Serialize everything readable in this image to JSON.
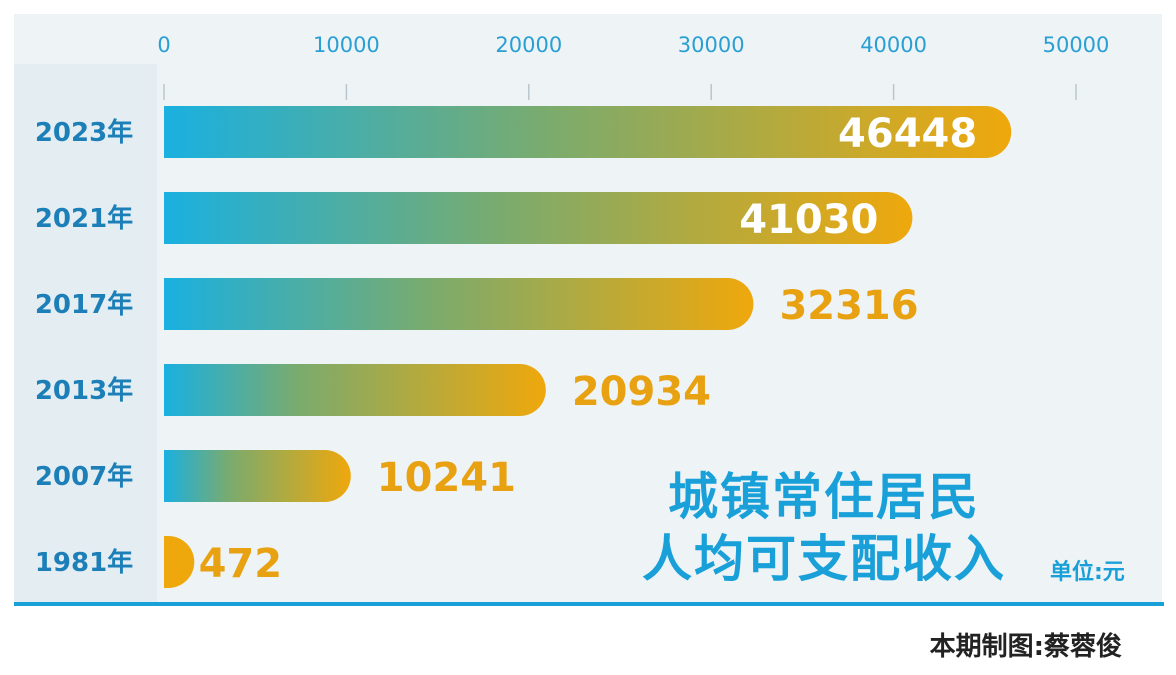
{
  "chart_data": {
    "type": "bar",
    "orientation": "horizontal",
    "title": [
      "城镇常住居民",
      "人均可支配收入"
    ],
    "unit": "单位:元",
    "categories": [
      "2023年",
      "2021年",
      "2017年",
      "2013年",
      "2007年",
      "1981年"
    ],
    "values": [
      46448,
      41030,
      32316,
      20934,
      10241,
      472
    ],
    "value_labels": [
      "46448",
      "41030",
      "32316",
      "20934",
      "10241",
      "472"
    ],
    "xlim": [
      0,
      50000
    ],
    "ticks": [
      0,
      10000,
      20000,
      30000,
      40000,
      50000
    ],
    "tick_labels": [
      "0",
      "10000",
      "20000",
      "30000",
      "40000",
      "50000"
    ],
    "axis_position": "top",
    "grid": false,
    "legend": "none",
    "colors": {
      "bar_start": "#1ab0e0",
      "bar_mid": "#7aab6e",
      "bar_end": "#efa80c",
      "value_inside": "#ffffff",
      "value_outside": "#e8a211",
      "text_blue": "#1aa0d8"
    }
  },
  "credit": "本期制图:蔡蓉俊"
}
